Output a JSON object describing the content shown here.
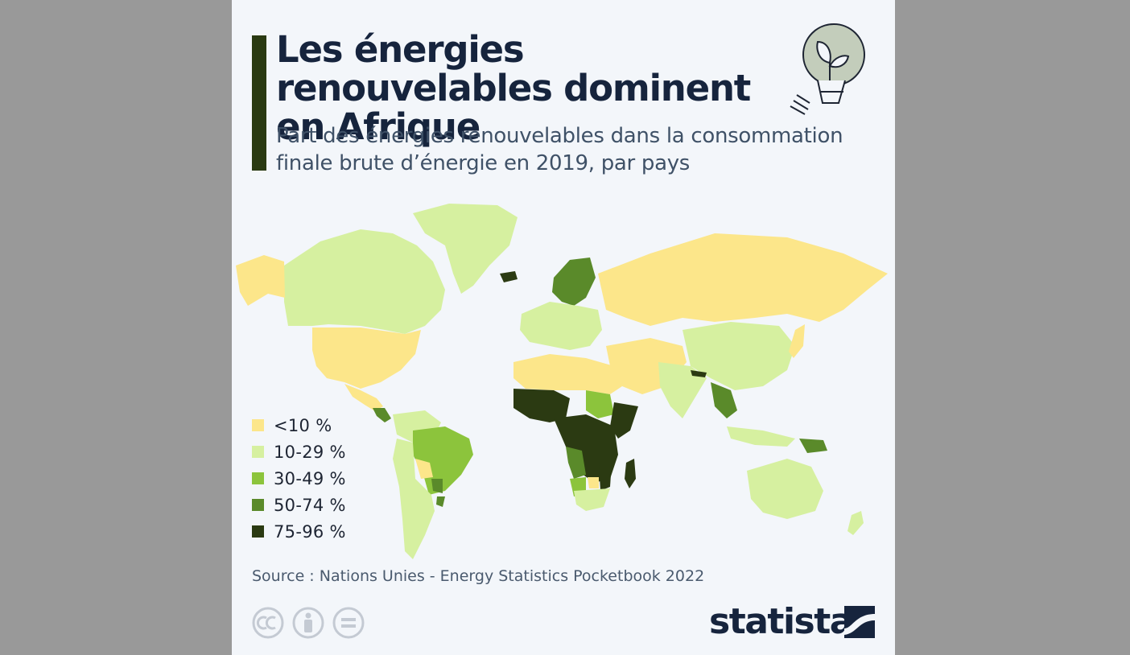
{
  "title": "Les énergies renouvelables dominent en Afrique",
  "subtitle": "Part des énergies renouvelables dans la consommation finale brute d’énergie en 2019, par pays",
  "legend": [
    {
      "label": "<10 %",
      "color": "#fce68a"
    },
    {
      "label": "10-29 %",
      "color": "#d6f0a0"
    },
    {
      "label": "30-49 %",
      "color": "#8cc43c"
    },
    {
      "label": "50-74 %",
      "color": "#5a8a2a"
    },
    {
      "label": "75-96 %",
      "color": "#2b3a12"
    }
  ],
  "source": "Source : Nations Unies - Energy Statistics Pocketbook 2022",
  "brand": "statista",
  "icons": [
    "lightbulb-leaf-icon",
    "cc-icon",
    "by-icon",
    "nd-icon",
    "statista-logo-icon"
  ]
}
